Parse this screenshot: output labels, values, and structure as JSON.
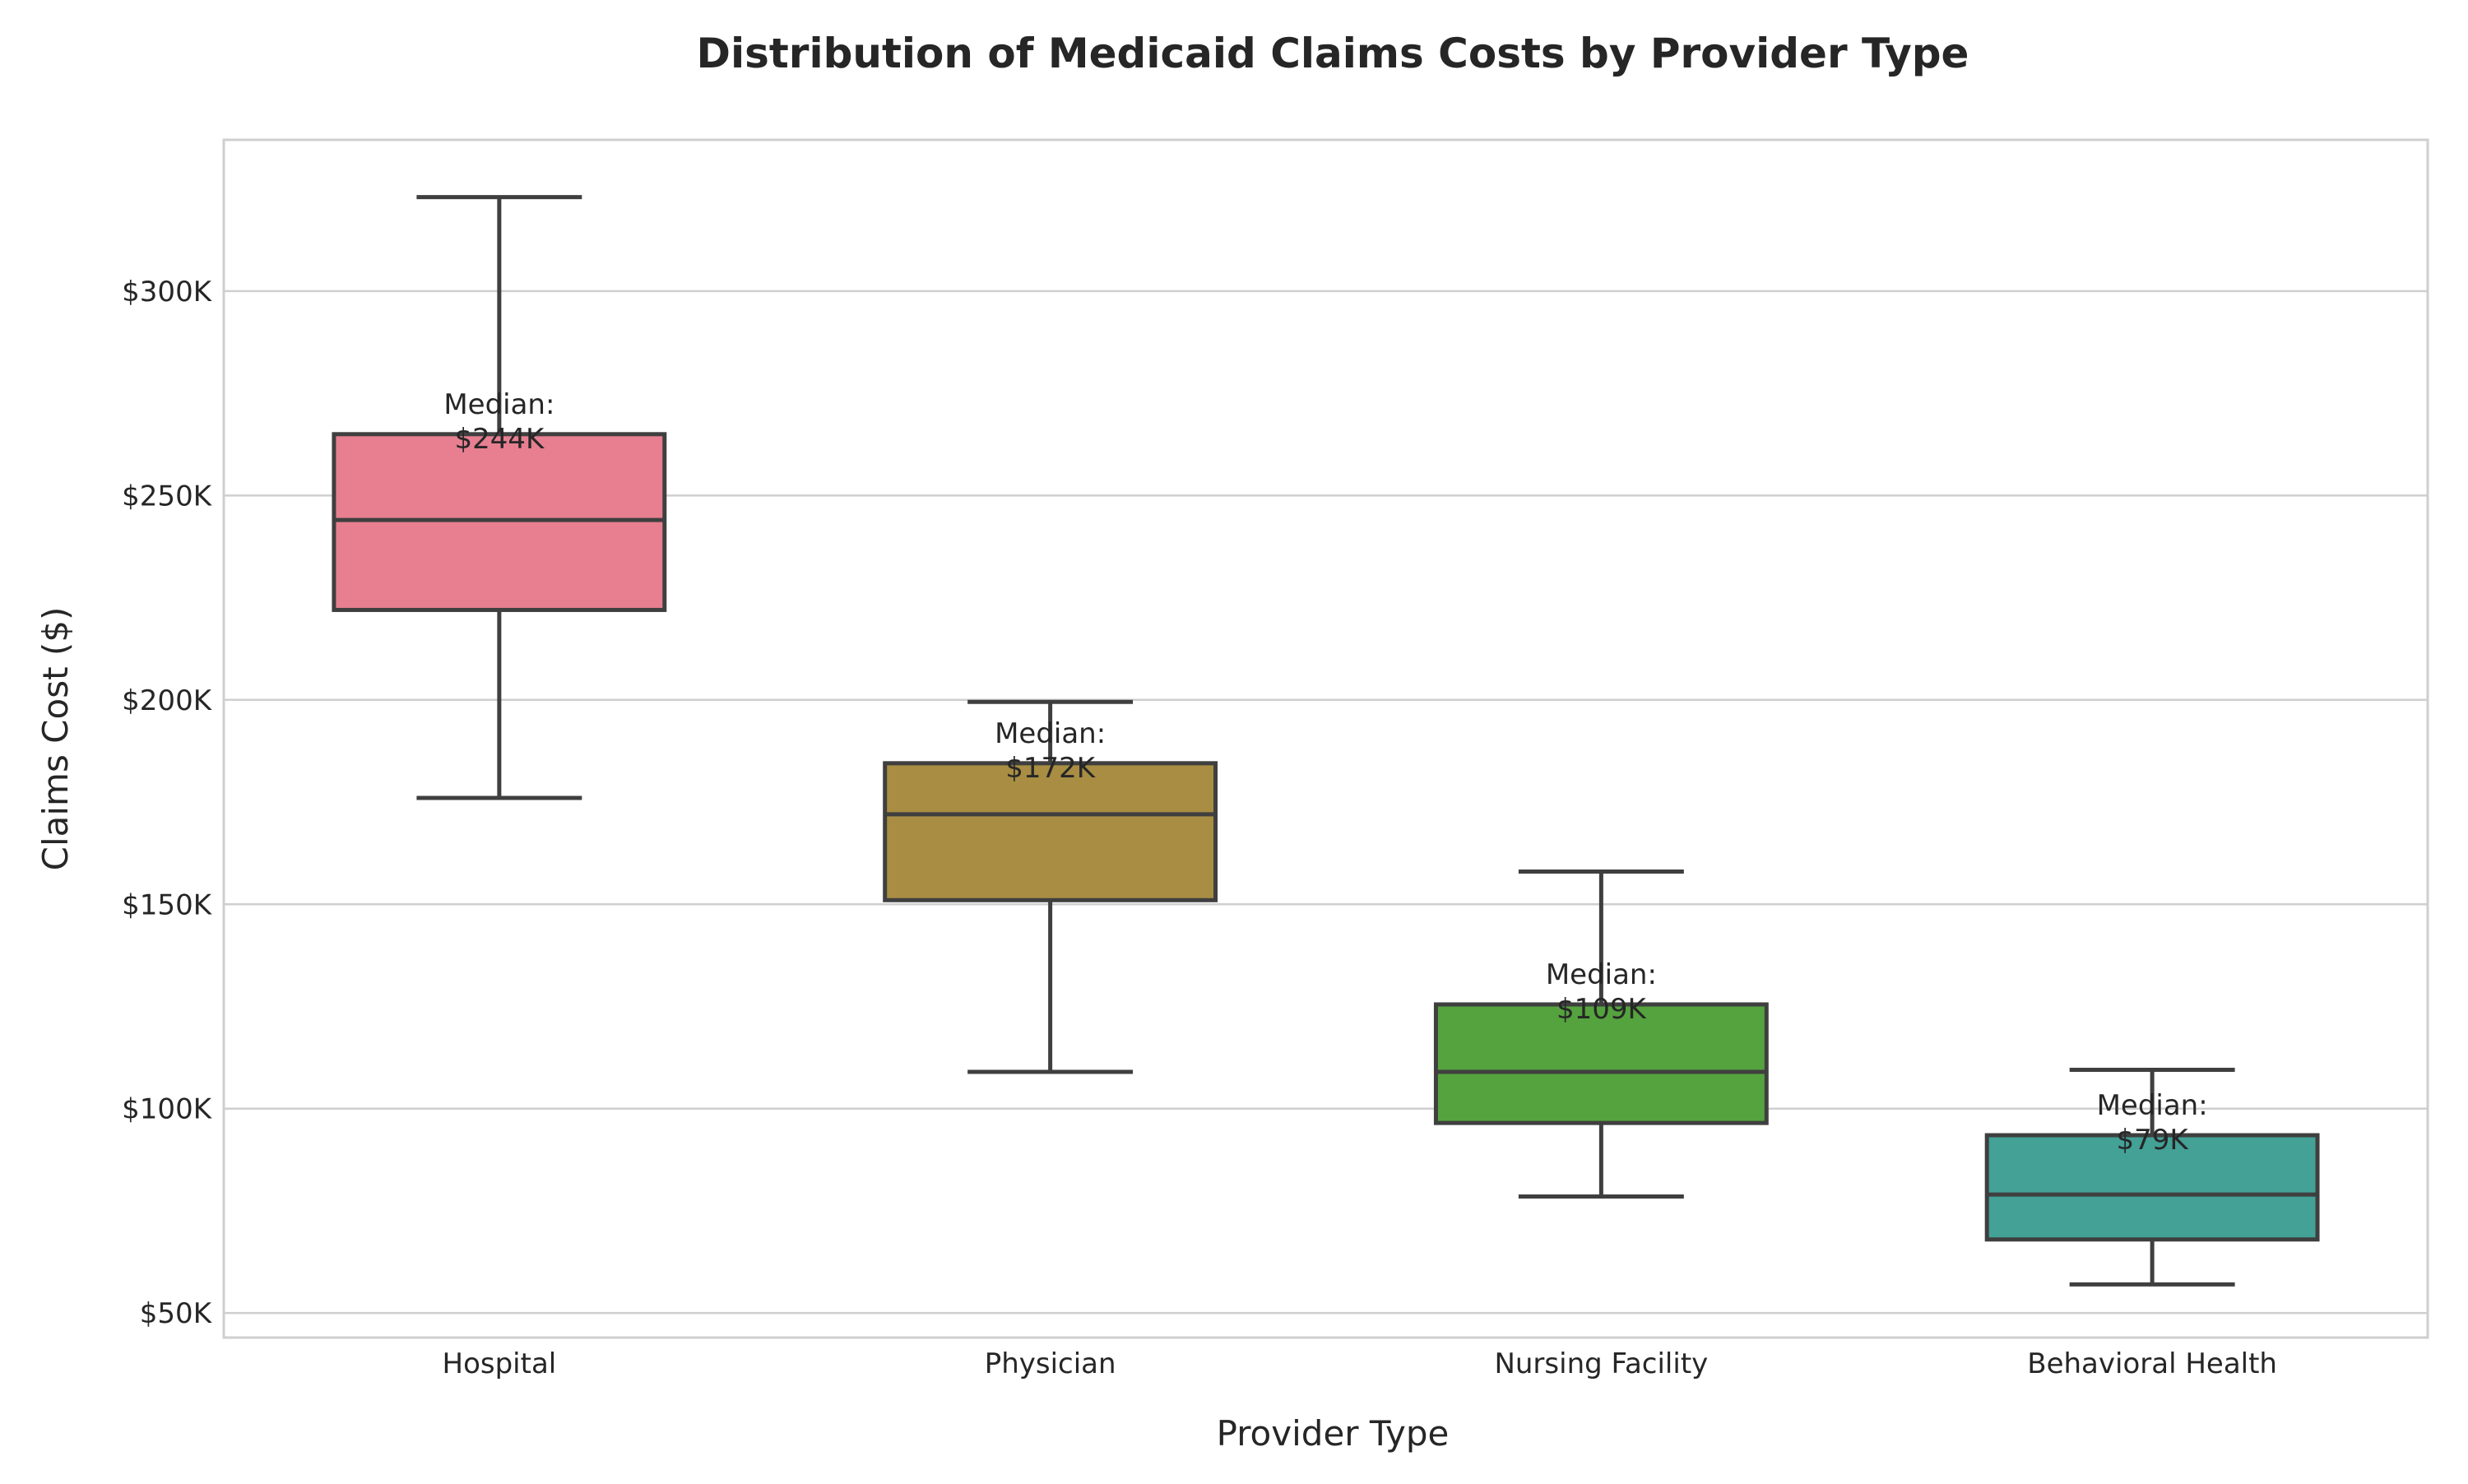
{
  "chart_data": {
    "type": "box",
    "title": "Distribution of Medicaid Claims Costs by Provider Type",
    "xlabel": "Provider Type",
    "ylabel": "Claims Cost ($)",
    "ylim": [
      44000,
      337000
    ],
    "yticks": [
      50000,
      100000,
      150000,
      200000,
      250000,
      300000
    ],
    "ytick_labels": [
      "$50K",
      "$100K",
      "$150K",
      "$200K",
      "$250K",
      "$300K"
    ],
    "grid": true,
    "categories": [
      "Hospital",
      "Physician",
      "Nursing Facility",
      "Behavioral Health"
    ],
    "boxes": [
      {
        "category": "Hospital",
        "whisker_low": 176000,
        "q1": 222000,
        "median": 244000,
        "q3": 265000,
        "whisker_high": 323000,
        "color": "#e77f91",
        "median_label": "Median:\n$244K"
      },
      {
        "category": "Physician",
        "whisker_low": 109000,
        "q1": 151000,
        "median": 172000,
        "q3": 184500,
        "whisker_high": 199500,
        "color": "#a88d43",
        "median_label": "Median:\n$172K"
      },
      {
        "category": "Nursing Facility",
        "whisker_low": 78500,
        "q1": 96500,
        "median": 109000,
        "q3": 125500,
        "whisker_high": 158000,
        "color": "#55a33f",
        "median_label": "Median:\n$109K"
      },
      {
        "category": "Behavioral Health",
        "whisker_low": 57000,
        "q1": 68000,
        "median": 79000,
        "q3": 93500,
        "whisker_high": 109500,
        "color": "#43a196",
        "median_label": "Median:\n$79K"
      }
    ]
  }
}
